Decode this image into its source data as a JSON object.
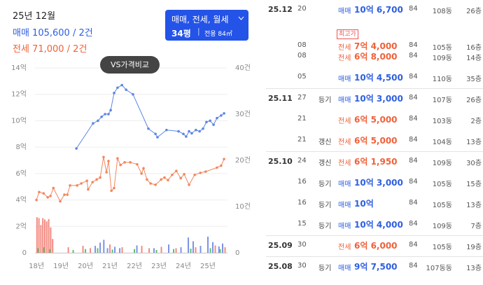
{
  "header": {
    "month": "25년 12월",
    "sale": "매매 105,600 / 2건",
    "sale_color": "#2f5fe0",
    "rent": "전세 71,000 / 2건",
    "rent_color": "#f0613a",
    "filter": "매매, 전세, 월세",
    "pyeong": "34평",
    "area": "전용 84㎡",
    "compare": "VS가격비교"
  },
  "chart_data": {
    "type": "line",
    "xlim": [
      17.94,
      25.8
    ],
    "xticks": [
      {
        "value": 18,
        "label": "18년"
      },
      {
        "value": 19,
        "label": "19년"
      },
      {
        "value": 20,
        "label": "20년"
      },
      {
        "value": 21,
        "label": "21년"
      },
      {
        "value": 22,
        "label": "22년"
      },
      {
        "value": 23,
        "label": "23년"
      },
      {
        "value": 24,
        "label": "24년"
      },
      {
        "value": 25,
        "label": "25년"
      }
    ],
    "ylim": [
      0,
      14
    ],
    "yticks": [
      0,
      {
        "value": 2,
        "label": "2억"
      },
      {
        "value": 4,
        "label": "4억"
      },
      {
        "value": 6,
        "label": "6억"
      },
      {
        "value": 8,
        "label": "8억"
      },
      {
        "value": 10,
        "label": "10억"
      },
      {
        "value": 12,
        "label": "12억"
      },
      {
        "value": 14,
        "label": "14억"
      }
    ],
    "y2lim": [
      0,
      40
    ],
    "y2ticks": [
      0,
      {
        "value": 10,
        "label": "10건"
      },
      {
        "value": 20,
        "label": "20건"
      },
      {
        "value": 30,
        "label": "30건"
      },
      {
        "value": 40,
        "label": "40건"
      }
    ],
    "grid": true,
    "series": [
      {
        "type": "line",
        "color": "#5b86e5",
        "x": [
          19.63,
          20.31,
          20.51,
          20.66,
          20.8,
          20.94,
          21.03,
          21.17,
          21.31,
          21.49,
          21.66,
          21.94,
          22.57,
          22.86,
          22.94,
          23.31,
          23.8,
          24.0,
          24.11,
          24.23,
          24.34,
          24.51,
          24.66,
          24.8,
          24.94,
          25.09,
          25.23,
          25.37,
          25.54,
          25.66
        ],
        "values": [
          7.9,
          9.8,
          10.0,
          10.3,
          10.5,
          10.5,
          10.8,
          12.1,
          12.5,
          12.7,
          12.35,
          12.0,
          9.4,
          9.0,
          8.75,
          9.3,
          9.2,
          9.0,
          8.8,
          9.2,
          9.05,
          9.3,
          9.2,
          9.4,
          9.9,
          10.0,
          9.7,
          10.2,
          10.4,
          10.56
        ]
      },
      {
        "type": "line",
        "color": "#f2875f",
        "x": [
          18.0,
          18.11,
          18.29,
          18.46,
          18.57,
          18.69,
          18.97,
          19.14,
          19.26,
          19.37,
          19.66,
          19.83,
          20.06,
          20.11,
          20.29,
          20.46,
          20.6,
          20.74,
          20.86,
          20.94,
          21.06,
          21.17,
          21.31,
          21.43,
          21.6,
          21.83,
          22.11,
          22.29,
          22.37,
          22.51,
          22.66,
          22.86,
          23.09,
          23.23,
          23.37,
          23.54,
          23.71,
          23.89,
          24.03,
          24.23,
          24.46,
          24.69,
          24.91,
          25.37,
          25.54,
          25.66
        ],
        "values": [
          4.0,
          4.6,
          4.5,
          4.2,
          4.3,
          4.9,
          3.9,
          4.4,
          4.4,
          5.1,
          5.1,
          5.25,
          5.45,
          4.8,
          5.35,
          5.55,
          5.7,
          7.25,
          6.1,
          6.95,
          4.7,
          4.9,
          7.15,
          6.65,
          6.85,
          6.85,
          6.7,
          6.0,
          6.4,
          5.55,
          5.25,
          5.15,
          5.55,
          5.7,
          5.5,
          5.9,
          6.2,
          5.65,
          5.95,
          5.15,
          5.9,
          6.05,
          6.15,
          6.45,
          6.6,
          7.1
        ]
      },
      {
        "type": "bar",
        "axis": "y2",
        "color": "#f28b82",
        "x": [
          18.02,
          18.1,
          18.18,
          18.26,
          18.34,
          18.42,
          18.5,
          18.58,
          18.66,
          19.3,
          19.9,
          20.2,
          21.0,
          21.5,
          22.3,
          22.6,
          23.1,
          23.7,
          24.5,
          25.3,
          25.7
        ],
        "values": [
          7.7,
          7.5,
          6.0,
          7.5,
          7.2,
          6.8,
          7.3,
          5.5,
          3.0,
          1.2,
          1.5,
          1.0,
          1.8,
          1.2,
          1.5,
          1.0,
          1.3,
          1.0,
          1.2,
          1.6,
          1.2
        ]
      },
      {
        "type": "bar",
        "axis": "y2",
        "color": "#7b93e8",
        "x": [
          20.4,
          20.6,
          20.75,
          20.9,
          21.2,
          21.4,
          22.1,
          22.8,
          23.4,
          23.9,
          24.2,
          24.4,
          24.7,
          25.0,
          25.2,
          25.45,
          25.6
        ],
        "values": [
          1.5,
          2.2,
          2.8,
          1.0,
          1.3,
          1.0,
          1.6,
          1.0,
          1.8,
          1.2,
          3.3,
          2.5,
          1.5,
          3.5,
          2.3,
          1.4,
          2.0
        ]
      },
      {
        "type": "bar",
        "axis": "y2",
        "color": "#5fbf6a",
        "x": [
          18.06,
          18.3,
          18.55,
          19.5,
          20.0,
          20.5,
          21.1,
          22.0,
          22.9,
          23.6,
          24.3,
          25.1,
          25.5
        ],
        "values": [
          1.0,
          1.2,
          0.8,
          0.6,
          0.8,
          1.0,
          0.7,
          0.8,
          0.6,
          0.8,
          0.9,
          1.0,
          0.8
        ]
      }
    ]
  },
  "transactions": {
    "rows": [
      {
        "month": "25.12",
        "day": "20",
        "note": null,
        "tag": null,
        "kind": "매매",
        "price": "10억 6,700",
        "color": "#2f5fe0",
        "area": "84",
        "dong": "108동",
        "floor": "26층"
      },
      {
        "month": null,
        "day": "08",
        "note": null,
        "tag": "최고가",
        "kind": "전세",
        "price": "7억 4,000",
        "color": "#f0613a",
        "area": "84",
        "dong": "105동",
        "floor": "16층"
      },
      {
        "month": null,
        "day": "08",
        "note": null,
        "tag": null,
        "kind": "전세",
        "price": "6억 8,000",
        "color": "#f0613a",
        "area": "84",
        "dong": "109동",
        "floor": "14층"
      },
      {
        "month": null,
        "day": "05",
        "note": null,
        "tag": null,
        "kind": "매매",
        "price": "10억 4,500",
        "color": "#2f5fe0",
        "area": "84",
        "dong": "110동",
        "floor": "35층"
      },
      {
        "month": "25.11",
        "day": "27",
        "note": "등기",
        "tag": null,
        "kind": "매매",
        "price": "10억 3,000",
        "color": "#2f5fe0",
        "area": "84",
        "dong": "107동",
        "floor": "26층"
      },
      {
        "month": null,
        "day": "21",
        "note": null,
        "tag": null,
        "kind": "전세",
        "price": "6억 5,000",
        "color": "#f0613a",
        "area": "84",
        "dong": "103동",
        "floor": "2층"
      },
      {
        "month": null,
        "day": "21",
        "note": "갱신",
        "tag": null,
        "kind": "전세",
        "price": "6억 5,000",
        "color": "#f0613a",
        "area": "84",
        "dong": "104동",
        "floor": "13층"
      },
      {
        "month": "25.10",
        "day": "24",
        "note": "갱신",
        "tag": null,
        "kind": "전세",
        "price": "6억 1,950",
        "color": "#f0613a",
        "area": "84",
        "dong": "109동",
        "floor": "30층"
      },
      {
        "month": null,
        "day": "16",
        "note": "등기",
        "tag": null,
        "kind": "매매",
        "price": "10억 3,000",
        "color": "#2f5fe0",
        "area": "84",
        "dong": "105동",
        "floor": "15층"
      },
      {
        "month": null,
        "day": "16",
        "note": "등기",
        "tag": null,
        "kind": "매매",
        "price": "10억",
        "color": "#2f5fe0",
        "area": "84",
        "dong": "105동",
        "floor": "13층"
      },
      {
        "month": null,
        "day": "15",
        "note": "등기",
        "tag": null,
        "kind": "매매",
        "price": "10억 4,000",
        "color": "#2f5fe0",
        "area": "84",
        "dong": "109동",
        "floor": "7층"
      },
      {
        "month": "25.09",
        "day": "30",
        "note": null,
        "tag": null,
        "kind": "전세",
        "price": "6억 6,000",
        "color": "#f0613a",
        "area": "84",
        "dong": "105동",
        "floor": "19층"
      },
      {
        "month": "25.08",
        "day": "30",
        "note": "등기",
        "tag": null,
        "kind": "매매",
        "price": "9억 7,500",
        "color": "#2f5fe0",
        "area": "84",
        "dong": "107동동",
        "floor": "13층"
      }
    ]
  }
}
